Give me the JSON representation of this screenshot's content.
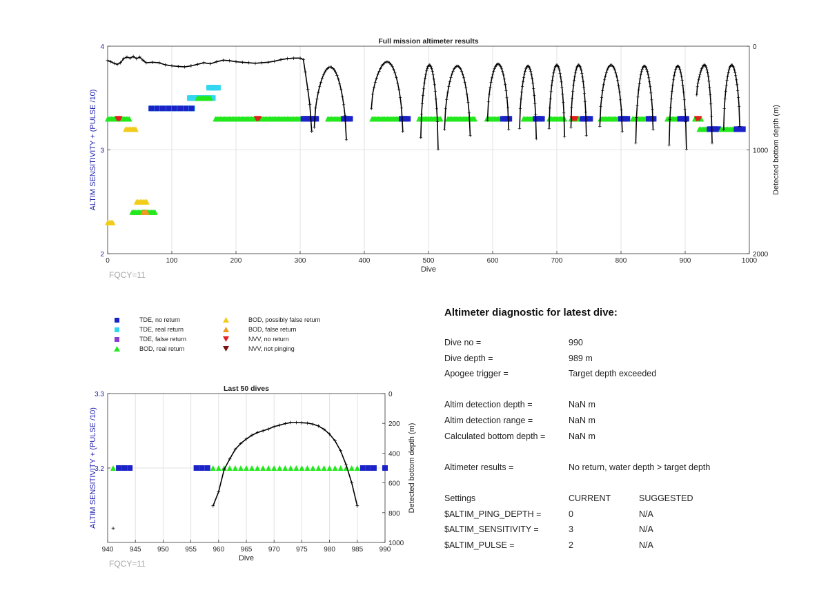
{
  "colors": {
    "tde_no_return": "#1a22c8",
    "tde_real_return": "#33d6f0",
    "tde_false_return": "#8a3fd0",
    "bod_real_return": "#22e81c",
    "bod_possibly_false_return": "#f2cc1a",
    "bod_false_return": "#f09a22",
    "nvv_no_return": "#e02020",
    "nvv_not_pinging": "#7a1010",
    "depth_line": "#000000",
    "left_axis": "#2020b0",
    "fqcy_text": "#a8a8a8"
  },
  "legend": [
    {
      "label": "TDE, no return",
      "symbol": "square",
      "color_key": "tde_no_return"
    },
    {
      "label": "TDE, real return",
      "symbol": "square",
      "color_key": "tde_real_return"
    },
    {
      "label": "TDE, false return",
      "symbol": "square",
      "color_key": "tde_false_return"
    },
    {
      "label": "BOD, real return",
      "symbol": "triangle-up",
      "color_key": "bod_real_return"
    },
    {
      "label": "BOD, possibly false return",
      "symbol": "triangle-up",
      "color_key": "bod_possibly_false_return"
    },
    {
      "label": "BOD, false return",
      "symbol": "triangle-up",
      "color_key": "bod_false_return"
    },
    {
      "label": "NVV, no return",
      "symbol": "triangle-down",
      "color_key": "nvv_no_return"
    },
    {
      "label": "NVV, not pinging",
      "symbol": "triangle-down",
      "color_key": "nvv_not_pinging"
    }
  ],
  "chart_data": [
    {
      "type": "scatter",
      "title": "Full mission altimeter results",
      "xlabel": "Dive",
      "ylabel_left": "ALTIM SENSITIVITY + (PULSE /10)",
      "ylabel_right": "Detected bottom depth (m)",
      "annotation": "FQCY=11",
      "xlim": [
        0,
        1000
      ],
      "ylim_left": [
        2,
        4
      ],
      "ylim_right_reversed": [
        0,
        2000
      ],
      "x_ticks": [
        0,
        100,
        200,
        300,
        400,
        500,
        600,
        700,
        800,
        900,
        1000
      ],
      "y_ticks_left": [
        2,
        3,
        4
      ],
      "y_ticks_right": [
        0,
        1000,
        2000
      ],
      "grid": true,
      "setting_segments": [
        {
          "series": "BOD, real return",
          "x": [
            0,
            35
          ],
          "y": 3.3
        },
        {
          "series": "NVV, no return",
          "x": [
            15,
            20
          ],
          "y": 3.3
        },
        {
          "series": "BOD, possibly false return",
          "x": [
            28,
            45
          ],
          "y": 3.2
        },
        {
          "series": "BOD, possibly false return",
          "x": [
            0,
            8
          ],
          "y": 2.3
        },
        {
          "series": "BOD, real return",
          "x": [
            38,
            75
          ],
          "y": 2.4
        },
        {
          "series": "BOD, possibly false return",
          "x": [
            45,
            62
          ],
          "y": 2.5
        },
        {
          "series": "BOD, false return",
          "x": [
            55,
            62
          ],
          "y": 2.4
        },
        {
          "series": "TDE, real return",
          "x": [
            68,
            132
          ],
          "y": 3.4
        },
        {
          "series": "TDE, no return",
          "x": [
            68,
            132
          ],
          "y": 3.4,
          "sparse": true
        },
        {
          "series": "TDE, real return",
          "x": [
            128,
            165
          ],
          "y": 3.5
        },
        {
          "series": "BOD, real return",
          "x": [
            140,
            160
          ],
          "y": 3.5
        },
        {
          "series": "TDE, real return",
          "x": [
            158,
            173
          ],
          "y": 3.6
        },
        {
          "series": "BOD, real return",
          "x": [
            168,
            315
          ],
          "y": 3.3
        },
        {
          "series": "NVV, no return",
          "x": [
            232,
            236
          ],
          "y": 3.3
        },
        {
          "series": "TDE, no return",
          "x": [
            305,
            325
          ],
          "y": 3.3
        },
        {
          "series": "BOD, real return",
          "x": [
            343,
            372
          ],
          "y": 3.3
        },
        {
          "series": "TDE, no return",
          "x": [
            368,
            378
          ],
          "y": 3.3
        },
        {
          "series": "BOD, real return",
          "x": [
            412,
            465
          ],
          "y": 3.3
        },
        {
          "series": "TDE, no return",
          "x": [
            458,
            468
          ],
          "y": 3.3
        },
        {
          "series": "BOD, real return",
          "x": [
            485,
            520
          ],
          "y": 3.3
        },
        {
          "series": "BOD, real return",
          "x": [
            530,
            572
          ],
          "y": 3.3
        },
        {
          "series": "BOD, real return",
          "x": [
            591,
            622
          ],
          "y": 3.3
        },
        {
          "series": "TDE, no return",
          "x": [
            616,
            626
          ],
          "y": 3.3
        },
        {
          "series": "BOD, real return",
          "x": [
            648,
            675
          ],
          "y": 3.3
        },
        {
          "series": "TDE, no return",
          "x": [
            667,
            678
          ],
          "y": 3.3
        },
        {
          "series": "BOD, real return",
          "x": [
            688,
            712
          ],
          "y": 3.3
        },
        {
          "series": "BOD, real return",
          "x": [
            722,
            746
          ],
          "y": 3.3
        },
        {
          "series": "NVV, no return",
          "x": [
            724,
            730
          ],
          "y": 3.3
        },
        {
          "series": "TDE, no return",
          "x": [
            740,
            752
          ],
          "y": 3.3
        },
        {
          "series": "BOD, real return",
          "x": [
            768,
            805
          ],
          "y": 3.3
        },
        {
          "series": "TDE, no return",
          "x": [
            800,
            810
          ],
          "y": 3.3
        },
        {
          "series": "BOD, real return",
          "x": [
            818,
            848
          ],
          "y": 3.3
        },
        {
          "series": "TDE, no return",
          "x": [
            843,
            852
          ],
          "y": 3.3
        },
        {
          "series": "BOD, real return",
          "x": [
            872,
            898
          ],
          "y": 3.3
        },
        {
          "series": "TDE, no return",
          "x": [
            892,
            902
          ],
          "y": 3.3
        },
        {
          "series": "BOD, real return",
          "x": [
            915,
            925
          ],
          "y": 3.3
        },
        {
          "series": "NVV, no return",
          "x": [
            918,
            922
          ],
          "y": 3.3
        },
        {
          "series": "BOD, real return",
          "x": [
            922,
            945
          ],
          "y": 3.2
        },
        {
          "series": "TDE, no return",
          "x": [
            938,
            952
          ],
          "y": 3.2
        },
        {
          "series": "BOD, real return",
          "x": [
            956,
            985
          ],
          "y": 3.2
        },
        {
          "series": "TDE, no return",
          "x": [
            980,
            990
          ],
          "y": 3.2
        }
      ],
      "early_depth_trace": [
        [
          0,
          140
        ],
        [
          5,
          150
        ],
        [
          10,
          165
        ],
        [
          15,
          175
        ],
        [
          20,
          160
        ],
        [
          25,
          120
        ],
        [
          30,
          105
        ],
        [
          35,
          115
        ],
        [
          40,
          100
        ],
        [
          45,
          120
        ],
        [
          50,
          105
        ],
        [
          55,
          135
        ],
        [
          60,
          160
        ],
        [
          70,
          155
        ],
        [
          80,
          160
        ],
        [
          90,
          180
        ],
        [
          100,
          190
        ],
        [
          110,
          195
        ],
        [
          120,
          200
        ],
        [
          130,
          190
        ],
        [
          140,
          175
        ],
        [
          150,
          160
        ],
        [
          160,
          170
        ],
        [
          170,
          150
        ],
        [
          180,
          135
        ],
        [
          190,
          140
        ],
        [
          200,
          150
        ],
        [
          210,
          155
        ],
        [
          220,
          160
        ],
        [
          230,
          165
        ],
        [
          240,
          160
        ],
        [
          250,
          155
        ],
        [
          260,
          145
        ],
        [
          270,
          130
        ],
        [
          280,
          120
        ],
        [
          290,
          115
        ],
        [
          300,
          115
        ],
        [
          305,
          130
        ],
        [
          308,
          250
        ],
        [
          312,
          420
        ],
        [
          315,
          560
        ],
        [
          318,
          820
        ]
      ],
      "dive_profiles": [
        {
          "start": 322,
          "end": 372,
          "apogee": 200,
          "start_depth": 780,
          "end_depth": 900
        },
        {
          "start": 411,
          "end": 460,
          "apogee": 150,
          "start_depth": 600,
          "end_depth": 820
        },
        {
          "start": 488,
          "end": 515,
          "apogee": 180,
          "start_depth": 880,
          "end_depth": 990
        },
        {
          "start": 525,
          "end": 565,
          "apogee": 190,
          "start_depth": 800,
          "end_depth": 860
        },
        {
          "start": 592,
          "end": 625,
          "apogee": 170,
          "start_depth": 710,
          "end_depth": 800
        },
        {
          "start": 642,
          "end": 668,
          "apogee": 190,
          "start_depth": 790,
          "end_depth": 890
        },
        {
          "start": 688,
          "end": 712,
          "apogee": 180,
          "start_depth": 790,
          "end_depth": 870
        },
        {
          "start": 722,
          "end": 746,
          "apogee": 180,
          "start_depth": 780,
          "end_depth": 860
        },
        {
          "start": 767,
          "end": 802,
          "apogee": 180,
          "start_depth": 770,
          "end_depth": 820
        },
        {
          "start": 823,
          "end": 850,
          "apogee": 190,
          "start_depth": 930,
          "end_depth": 800
        },
        {
          "start": 875,
          "end": 902,
          "apogee": 190,
          "start_depth": 950,
          "end_depth": 990
        },
        {
          "start": 918,
          "end": 942,
          "apogee": 180,
          "start_depth": 470,
          "end_depth": 930
        },
        {
          "start": 960,
          "end": 985,
          "apogee": 180,
          "start_depth": 800,
          "end_depth": 770
        }
      ]
    },
    {
      "type": "scatter",
      "title": "Last 50 dives",
      "xlabel": "Dive",
      "ylabel_left": "ALTIM SENSITIVITY + (PULSE /10)",
      "ylabel_right": "Detected bottom depth (m)",
      "annotation": "FQCY=11",
      "xlim": [
        940,
        990
      ],
      "ylim_left": [
        3.1,
        3.3
      ],
      "ylim_right_reversed": [
        0,
        1000
      ],
      "x_ticks": [
        940,
        945,
        950,
        955,
        960,
        965,
        970,
        975,
        980,
        985,
        990
      ],
      "y_ticks_left": [
        3.2,
        3.3
      ],
      "y_ticks_right": [
        0,
        200,
        400,
        600,
        800,
        1000
      ],
      "grid": true,
      "points": [
        {
          "dive": 941,
          "series": "BOD, real return",
          "setting": 3.2
        },
        {
          "dive": 942,
          "series": "TDE, no return",
          "setting": 3.2
        },
        {
          "dive": 943,
          "series": "TDE, no return",
          "setting": 3.2
        },
        {
          "dive": 944,
          "series": "TDE, no return",
          "setting": 3.2
        },
        {
          "dive": 956,
          "series": "TDE, no return",
          "setting": 3.2
        },
        {
          "dive": 957,
          "series": "TDE, no return",
          "setting": 3.2
        },
        {
          "dive": 958,
          "series": "TDE, no return",
          "setting": 3.2
        },
        {
          "dive": 959,
          "series": "BOD, real return",
          "setting": 3.2
        },
        {
          "dive": 960,
          "series": "BOD, real return",
          "setting": 3.2
        },
        {
          "dive": 961,
          "series": "BOD, real return",
          "setting": 3.2
        },
        {
          "dive": 962,
          "series": "BOD, real return",
          "setting": 3.2
        },
        {
          "dive": 963,
          "series": "BOD, real return",
          "setting": 3.2
        },
        {
          "dive": 964,
          "series": "BOD, real return",
          "setting": 3.2
        },
        {
          "dive": 965,
          "series": "BOD, real return",
          "setting": 3.2
        },
        {
          "dive": 966,
          "series": "BOD, real return",
          "setting": 3.2
        },
        {
          "dive": 967,
          "series": "BOD, real return",
          "setting": 3.2
        },
        {
          "dive": 968,
          "series": "BOD, real return",
          "setting": 3.2
        },
        {
          "dive": 969,
          "series": "BOD, real return",
          "setting": 3.2
        },
        {
          "dive": 970,
          "series": "BOD, real return",
          "setting": 3.2
        },
        {
          "dive": 971,
          "series": "BOD, real return",
          "setting": 3.2
        },
        {
          "dive": 972,
          "series": "BOD, real return",
          "setting": 3.2
        },
        {
          "dive": 973,
          "series": "BOD, real return",
          "setting": 3.2
        },
        {
          "dive": 974,
          "series": "BOD, real return",
          "setting": 3.2
        },
        {
          "dive": 975,
          "series": "BOD, real return",
          "setting": 3.2
        },
        {
          "dive": 976,
          "series": "BOD, real return",
          "setting": 3.2
        },
        {
          "dive": 977,
          "series": "BOD, real return",
          "setting": 3.2
        },
        {
          "dive": 978,
          "series": "BOD, real return",
          "setting": 3.2
        },
        {
          "dive": 979,
          "series": "BOD, real return",
          "setting": 3.2
        },
        {
          "dive": 980,
          "series": "BOD, real return",
          "setting": 3.2
        },
        {
          "dive": 981,
          "series": "BOD, real return",
          "setting": 3.2
        },
        {
          "dive": 982,
          "series": "BOD, real return",
          "setting": 3.2
        },
        {
          "dive": 983,
          "series": "BOD, real return",
          "setting": 3.2
        },
        {
          "dive": 984,
          "series": "BOD, real return",
          "setting": 3.2
        },
        {
          "dive": 985,
          "series": "BOD, real return",
          "setting": 3.2
        },
        {
          "dive": 986,
          "series": "TDE, no return",
          "setting": 3.2
        },
        {
          "dive": 987,
          "series": "TDE, no return",
          "setting": 3.2
        },
        {
          "dive": 988,
          "series": "TDE, no return",
          "setting": 3.2
        },
        {
          "dive": 990,
          "series": "TDE, no return",
          "setting": 3.2
        }
      ],
      "bottom_depth": {
        "x": [
          941,
          959,
          960,
          961,
          962,
          963,
          964,
          965,
          966,
          967,
          968,
          969,
          970,
          971,
          972,
          973,
          974,
          975,
          976,
          977,
          978,
          979,
          980,
          981,
          982,
          983,
          984,
          985
        ],
        "y": [
          905,
          755,
          660,
          510,
          440,
          375,
          335,
          305,
          280,
          262,
          250,
          238,
          222,
          212,
          202,
          195,
          195,
          196,
          198,
          205,
          218,
          240,
          272,
          318,
          385,
          480,
          600,
          755
        ]
      }
    }
  ],
  "diagnostic": {
    "title": "Altimeter diagnostic for latest dive:",
    "rows": [
      [
        "Dive no =",
        "990"
      ],
      [
        "Dive depth =",
        "989 m"
      ],
      [
        "Apogee trigger =",
        "Target depth exceeded"
      ],
      null,
      [
        "Altim detection depth =",
        "NaN m"
      ],
      [
        "Altim detection range =",
        "NaN m"
      ],
      [
        "Calculated bottom depth =",
        "NaN m"
      ],
      null,
      [
        "Altimeter results =",
        "No return, water depth > target depth"
      ],
      null,
      [
        "Settings",
        "CURRENT",
        "SUGGESTED"
      ],
      [
        "$ALTIM_PING_DEPTH =",
        "0",
        "N/A"
      ],
      [
        "$ALTIM_SENSITIVITY =",
        "3",
        "N/A"
      ],
      [
        "$ALTIM_PULSE =",
        "2",
        "N/A"
      ]
    ]
  }
}
